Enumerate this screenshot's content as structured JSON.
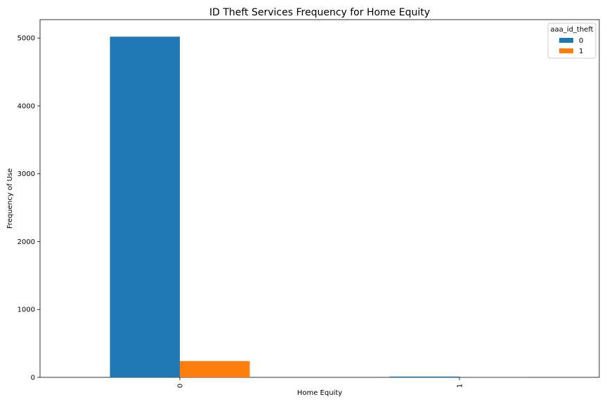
{
  "chart_data": {
    "type": "bar",
    "title": "ID Theft Services Frequency for Home Equity",
    "xlabel": "Home Equity",
    "ylabel": "Frequency of Use",
    "categories": [
      "0",
      "1"
    ],
    "series": [
      {
        "name": "0",
        "values": [
          5020,
          12
        ],
        "color": "#1f77b4"
      },
      {
        "name": "1",
        "values": [
          240,
          1
        ],
        "color": "#ff7f0e"
      }
    ],
    "legend_title": "aaa_id_theft",
    "legend_position": "top-right",
    "ylim": [
      0,
      5271
    ],
    "yticks": [
      0,
      1000,
      2000,
      3000,
      4000,
      5000
    ],
    "grid": false
  }
}
